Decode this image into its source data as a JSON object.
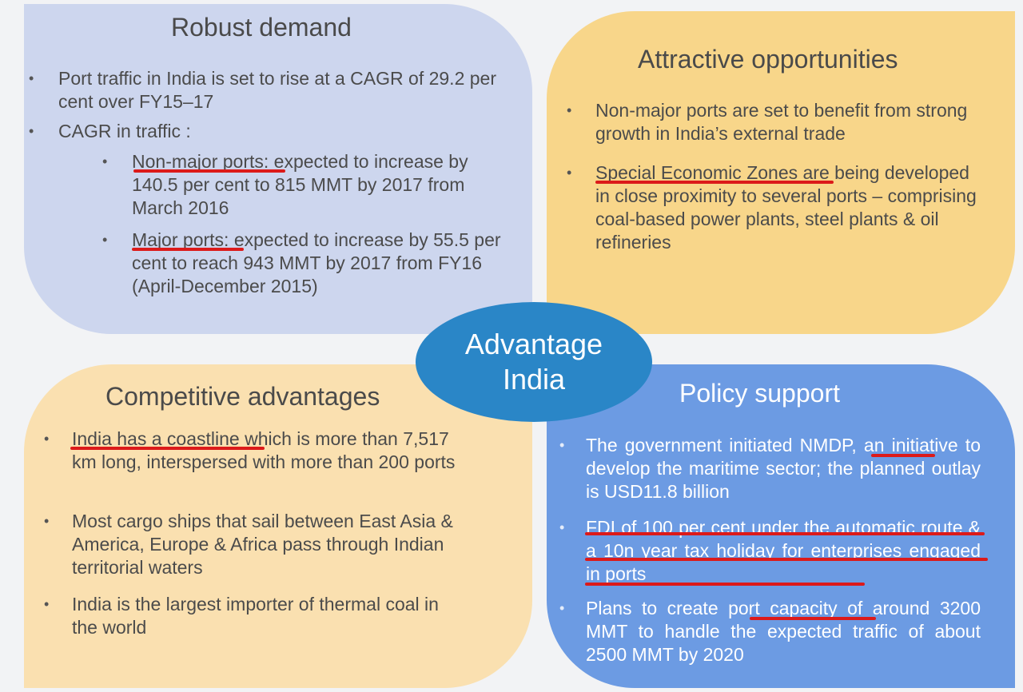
{
  "center": {
    "line1": "Advantage",
    "line2": "India"
  },
  "robust": {
    "title": "Robust demand",
    "items": [
      {
        "text": "Port traffic in India is set to rise at a CAGR of 29.2 per cent over FY15–17"
      },
      {
        "text": "CAGR in traffic :"
      }
    ],
    "subitems": [
      {
        "lead": "Non-major ports",
        "rest": ": expected to increase by 140.5 per cent to 815 MMT by 2017 from March 2016"
      },
      {
        "lead": "Major ports",
        "rest": ": expected to increase by 55.5 per cent to reach 943 MMT by 2017 from FY16 (April-December 2015)"
      }
    ]
  },
  "attract": {
    "title": "Attractive opportunities",
    "items": [
      {
        "lead": "",
        "rest": "Non-major ports are set to benefit from strong growth in India’s external trade"
      },
      {
        "lead": "Special Economic Zones",
        "rest": " are being developed in close proximity to several ports – comprising coal-based power plants, steel plants & oil refineries"
      }
    ]
  },
  "compet": {
    "title": "Competitive advantages",
    "items": [
      {
        "lead": "India has a coastline",
        "rest": " which is more than 7,517 km long, interspersed with more than 200 ports"
      },
      {
        "lead": "",
        "rest": "Most cargo ships that sail between East Asia & America, Europe & Africa pass through Indian territorial waters"
      },
      {
        "lead": "",
        "rest": "India is the largest importer of thermal coal in the world"
      }
    ]
  },
  "policy": {
    "title": "Policy support",
    "items": [
      {
        "text": "The government initiated NMDP, an initiative to develop the maritime sector; the planned outlay is USD11.8 billion"
      },
      {
        "text": "FDI of 100 per cent under the automatic route & a 10n year tax holiday for enterprises engaged in ports"
      },
      {
        "text": "Plans to create port capacity of around 3200 MMT to handle the expected traffic of about 2500 MMT by 2020"
      }
    ]
  },
  "colors": {
    "robust_bg": "#cdd6ee",
    "attract_bg": "#f8d68a",
    "compet_bg": "#fae0b0",
    "policy_bg": "#6c9be3",
    "center_bg": "#2a86c7",
    "annotation_red": "#dc1a1a"
  }
}
